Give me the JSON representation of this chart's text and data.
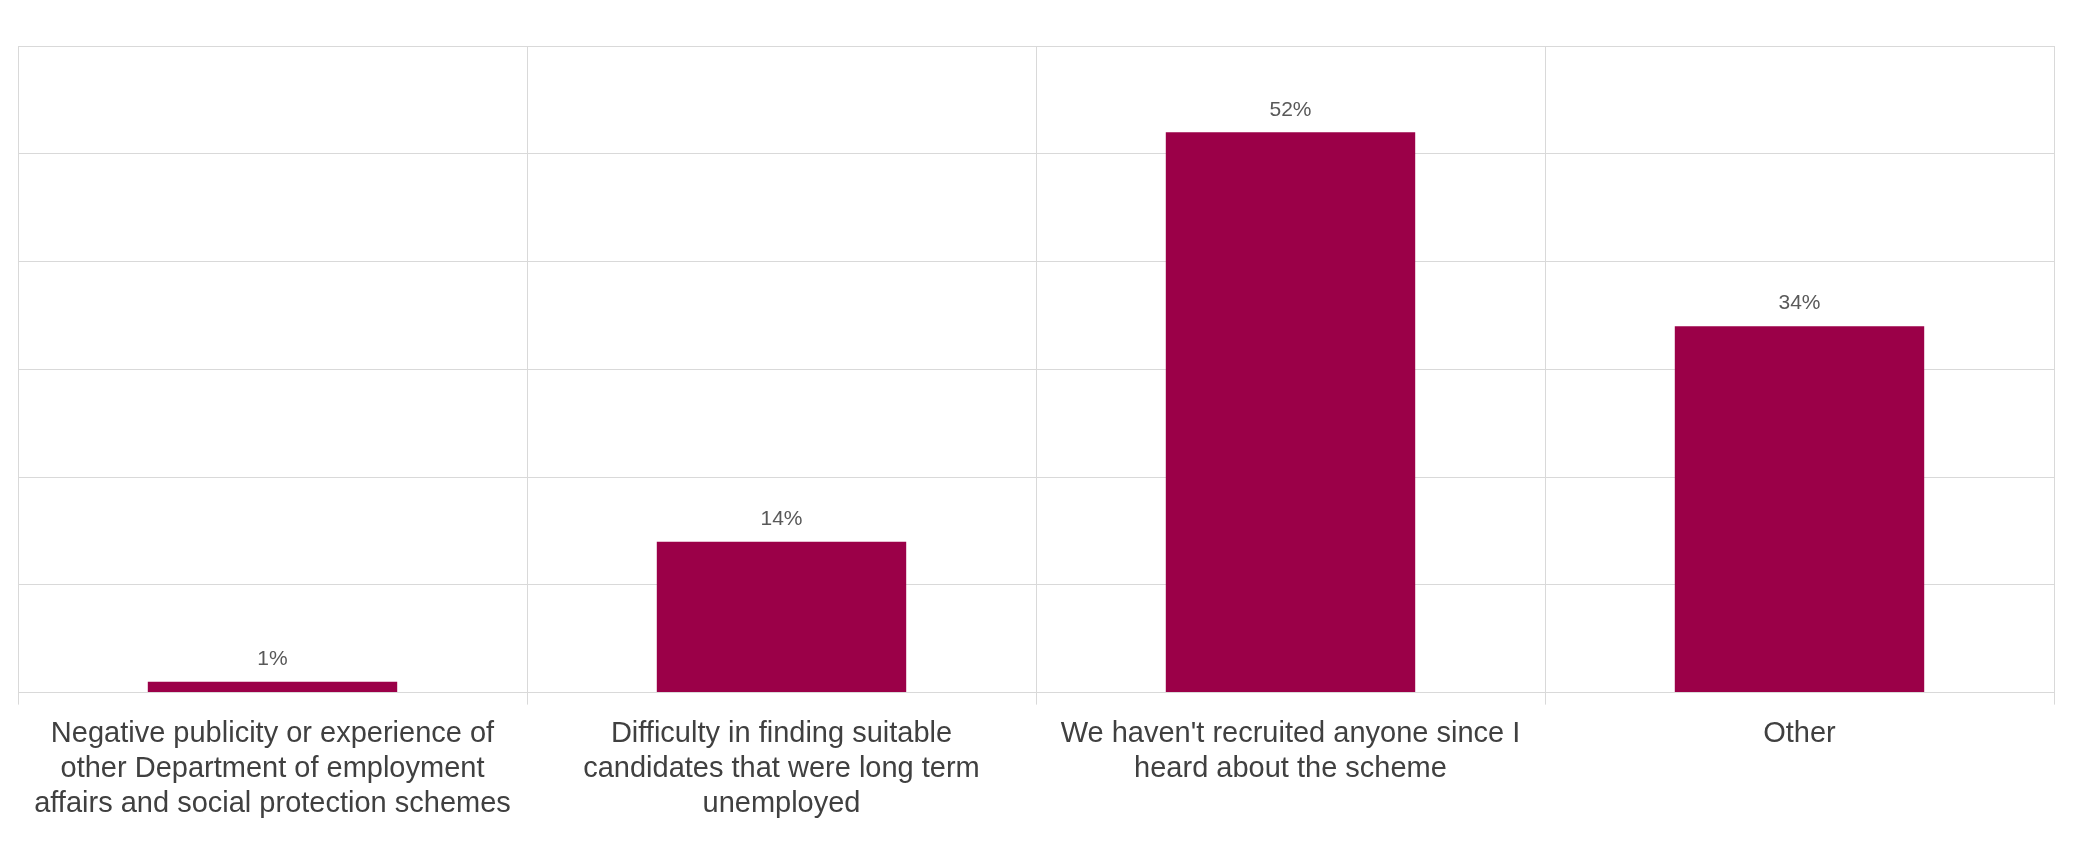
{
  "chart_data": {
    "type": "bar",
    "categories": [
      "Negative publicity or experience of other Department of employment affairs and social protection schemes",
      "Difficulty in finding suitable candidates that were long term unemployed",
      "We haven't recruited anyone since I heard about the scheme",
      "Other"
    ],
    "values": [
      1,
      14,
      52,
      34
    ],
    "value_labels": [
      "1%",
      "14%",
      "52%",
      "34%"
    ],
    "color": "#9b0048",
    "ylim": [
      0,
      60
    ],
    "yticks": [
      0,
      10,
      20,
      30,
      40,
      50,
      60
    ],
    "grid": true,
    "tick_labels": "x"
  }
}
